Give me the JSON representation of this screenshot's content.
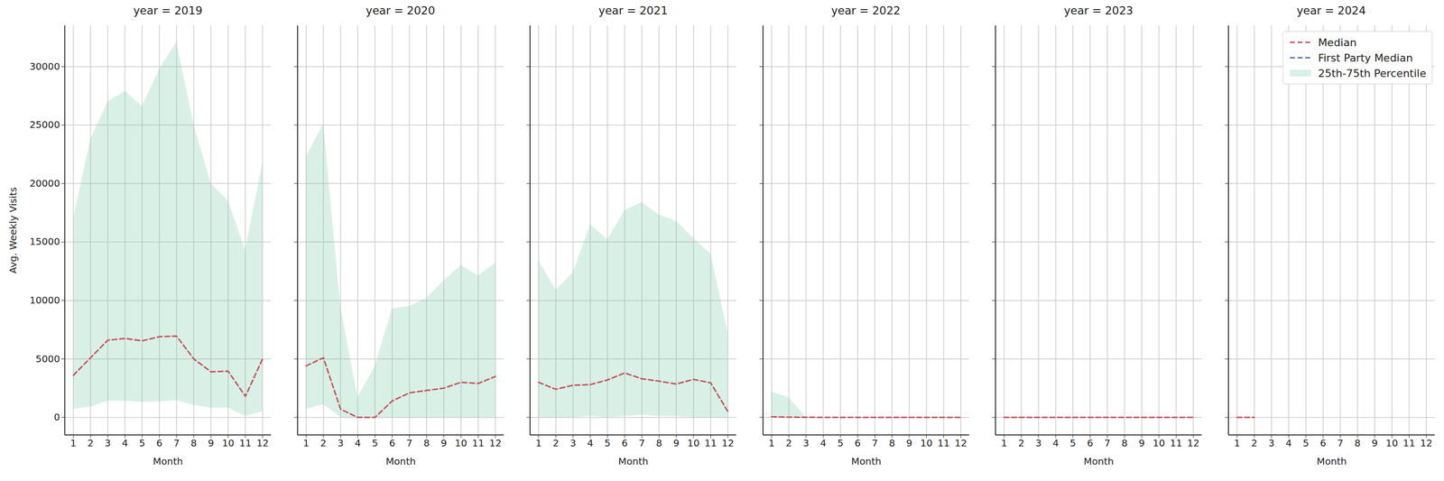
{
  "chart_data": [
    {
      "type": "line",
      "title": "year = 2019",
      "x_label": "Month",
      "y_label": "Avg. Weekly Visits",
      "x": [
        1,
        2,
        3,
        4,
        5,
        6,
        7,
        8,
        9,
        10,
        11,
        12
      ],
      "xlim": [
        0.5,
        12.5
      ],
      "xticks": [
        1,
        2,
        3,
        4,
        5,
        6,
        7,
        8,
        9,
        10,
        11,
        12
      ],
      "ylim": [
        -1500,
        33500
      ],
      "yticks": [
        0,
        5000,
        10000,
        15000,
        20000,
        25000,
        30000
      ],
      "grid": true,
      "series": [
        {
          "name": "Median",
          "color": "#c44e52",
          "line_style": "dashed",
          "values": [
            3600,
            5100,
            6600,
            6750,
            6550,
            6900,
            6950,
            5000,
            3900,
            3950,
            1800,
            5000
          ]
        },
        {
          "name": "First Party Median",
          "color": "#4c72b0",
          "line_style": "dashed",
          "values": [
            null,
            null,
            null,
            null,
            null,
            null,
            null,
            null,
            null,
            null,
            null,
            null
          ]
        },
        {
          "name": "25th-75th Percentile",
          "type": "area",
          "color": "#69c2a0",
          "low": [
            700,
            900,
            1400,
            1400,
            1300,
            1350,
            1450,
            1050,
            800,
            800,
            100,
            500
          ],
          "high": [
            17000,
            23800,
            27000,
            27900,
            26600,
            29800,
            32100,
            25000,
            20000,
            18500,
            14300,
            21800
          ]
        }
      ]
    },
    {
      "type": "line",
      "title": "year = 2020",
      "x_label": "Month",
      "tick_labels": "x",
      "x": [
        1,
        2,
        3,
        4,
        5,
        6,
        7,
        8,
        9,
        10,
        11,
        12
      ],
      "xlim": [
        0.5,
        12.5
      ],
      "xticks": [
        1,
        2,
        3,
        4,
        5,
        6,
        7,
        8,
        9,
        10,
        11,
        12
      ],
      "ylim": [
        -1500,
        33500
      ],
      "yticks": [
        0,
        5000,
        10000,
        15000,
        20000,
        25000,
        30000
      ],
      "grid": true,
      "series": [
        {
          "name": "Median",
          "color": "#c44e52",
          "line_style": "dashed",
          "values": [
            4400,
            5100,
            700,
            0,
            0,
            1400,
            2100,
            2300,
            2500,
            3000,
            2900,
            3500
          ]
        },
        {
          "name": "First Party Median",
          "color": "#4c72b0",
          "line_style": "dashed",
          "values": [
            null,
            null,
            null,
            null,
            null,
            null,
            null,
            null,
            null,
            null,
            null,
            null
          ]
        },
        {
          "name": "25th-75th Percentile",
          "type": "area",
          "color": "#69c2a0",
          "low": [
            700,
            1100,
            0,
            0,
            0,
            0,
            0,
            0,
            0,
            0,
            0,
            0
          ],
          "high": [
            22300,
            25100,
            9400,
            1700,
            4400,
            9300,
            9500,
            10200,
            11700,
            13000,
            12100,
            13200
          ]
        }
      ]
    },
    {
      "type": "line",
      "title": "year = 2021",
      "x_label": "Month",
      "tick_labels": "x",
      "x": [
        1,
        2,
        3,
        4,
        5,
        6,
        7,
        8,
        9,
        10,
        11,
        12
      ],
      "xlim": [
        0.5,
        12.5
      ],
      "xticks": [
        1,
        2,
        3,
        4,
        5,
        6,
        7,
        8,
        9,
        10,
        11,
        12
      ],
      "ylim": [
        -1500,
        33500
      ],
      "yticks": [
        0,
        5000,
        10000,
        15000,
        20000,
        25000,
        30000
      ],
      "grid": true,
      "series": [
        {
          "name": "Median",
          "color": "#c44e52",
          "line_style": "dashed",
          "values": [
            3000,
            2400,
            2750,
            2800,
            3200,
            3800,
            3300,
            3100,
            2850,
            3250,
            2950,
            500
          ]
        },
        {
          "name": "First Party Median",
          "color": "#4c72b0",
          "line_style": "dashed",
          "values": [
            null,
            null,
            null,
            null,
            null,
            null,
            null,
            null,
            null,
            null,
            null,
            null
          ]
        },
        {
          "name": "25th-75th Percentile",
          "type": "area",
          "color": "#69c2a0",
          "low": [
            0,
            0,
            0,
            100,
            0,
            100,
            200,
            100,
            100,
            0,
            0,
            0
          ],
          "high": [
            13400,
            10900,
            12400,
            16500,
            15200,
            17700,
            18400,
            17300,
            16800,
            15300,
            14000,
            7200
          ]
        }
      ]
    },
    {
      "type": "line",
      "title": "year = 2022",
      "x_label": "Month",
      "tick_labels": "x",
      "x": [
        1,
        2,
        3,
        4,
        5,
        6,
        7,
        8,
        9,
        10,
        11,
        12
      ],
      "xlim": [
        0.5,
        12.5
      ],
      "xticks": [
        1,
        2,
        3,
        4,
        5,
        6,
        7,
        8,
        9,
        10,
        11,
        12
      ],
      "ylim": [
        -1500,
        33500
      ],
      "yticks": [
        0,
        5000,
        10000,
        15000,
        20000,
        25000,
        30000
      ],
      "grid": true,
      "series": [
        {
          "name": "Median",
          "color": "#c44e52",
          "line_style": "dashed",
          "values": [
            50,
            20,
            10,
            0,
            0,
            0,
            0,
            0,
            0,
            0,
            0,
            0
          ]
        },
        {
          "name": "First Party Median",
          "color": "#4c72b0",
          "line_style": "dashed",
          "values": [
            null,
            null,
            null,
            null,
            null,
            null,
            null,
            null,
            null,
            null,
            null,
            null
          ]
        },
        {
          "name": "25th-75th Percentile",
          "type": "area",
          "color": "#69c2a0",
          "low": [
            0,
            0,
            0,
            0,
            0,
            0,
            0,
            0,
            0,
            0,
            0,
            0
          ],
          "high": [
            2200,
            1700,
            0,
            0,
            0,
            0,
            0,
            0,
            0,
            0,
            0,
            0
          ]
        }
      ]
    },
    {
      "type": "line",
      "title": "year = 2023",
      "x_label": "Month",
      "tick_labels": "x",
      "x": [
        1,
        2,
        3,
        4,
        5,
        6,
        7,
        8,
        9,
        10,
        11,
        12
      ],
      "xlim": [
        0.5,
        12.5
      ],
      "xticks": [
        1,
        2,
        3,
        4,
        5,
        6,
        7,
        8,
        9,
        10,
        11,
        12
      ],
      "ylim": [
        -1500,
        33500
      ],
      "yticks": [
        0,
        5000,
        10000,
        15000,
        20000,
        25000,
        30000
      ],
      "grid": true,
      "series": [
        {
          "name": "Median",
          "color": "#c44e52",
          "line_style": "dashed",
          "values": [
            0,
            0,
            0,
            0,
            0,
            0,
            0,
            0,
            0,
            0,
            0,
            0
          ]
        },
        {
          "name": "First Party Median",
          "color": "#4c72b0",
          "line_style": "dashed",
          "values": [
            null,
            null,
            null,
            null,
            null,
            null,
            null,
            null,
            null,
            null,
            null,
            null
          ]
        },
        {
          "name": "25th-75th Percentile",
          "type": "area",
          "color": "#69c2a0",
          "low": [
            0,
            0,
            0,
            0,
            0,
            0,
            0,
            0,
            0,
            0,
            0,
            0
          ],
          "high": [
            0,
            0,
            0,
            0,
            0,
            0,
            0,
            0,
            0,
            0,
            0,
            0
          ]
        }
      ]
    },
    {
      "type": "line",
      "title": "year = 2024",
      "x_label": "Month",
      "tick_labels": "x",
      "legend": "upper right",
      "x": [
        1,
        2,
        3,
        4,
        5,
        6,
        7,
        8,
        9,
        10,
        11,
        12
      ],
      "xlim": [
        0.5,
        12.5
      ],
      "xticks": [
        1,
        2,
        3,
        4,
        5,
        6,
        7,
        8,
        9,
        10,
        11,
        12
      ],
      "ylim": [
        -1500,
        33500
      ],
      "yticks": [
        0,
        5000,
        10000,
        15000,
        20000,
        25000,
        30000
      ],
      "grid": true,
      "series": [
        {
          "name": "Median",
          "color": "#c44e52",
          "line_style": "dashed",
          "values": [
            0,
            0,
            null,
            null,
            null,
            null,
            null,
            null,
            null,
            null,
            null,
            null
          ]
        },
        {
          "name": "First Party Median",
          "color": "#4c72b0",
          "line_style": "dashed",
          "values": [
            null,
            null,
            null,
            null,
            null,
            null,
            null,
            null,
            null,
            null,
            null,
            null
          ]
        },
        {
          "name": "25th-75th Percentile",
          "type": "area",
          "color": "#69c2a0",
          "low": [
            0,
            0,
            null,
            null,
            null,
            null,
            null,
            null,
            null,
            null,
            null,
            null
          ],
          "high": [
            0,
            0,
            null,
            null,
            null,
            null,
            null,
            null,
            null,
            null,
            null,
            null
          ]
        }
      ]
    }
  ]
}
